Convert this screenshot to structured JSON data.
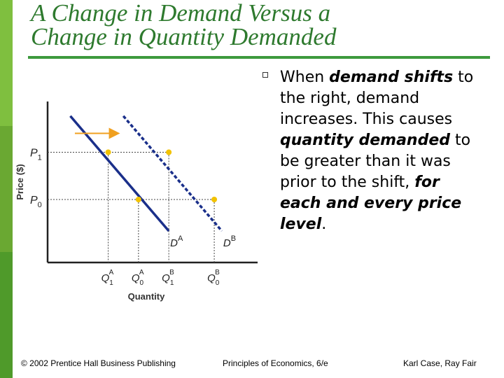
{
  "colors": {
    "title": "#2e7a2e",
    "rule": "#3d9a3d",
    "sidebar": [
      "#3d6b3d",
      "#7fbf3f",
      "#6aa832",
      "#4f9a2a"
    ],
    "curve": "#1a2f8a",
    "point": "#f2c200",
    "arrow": "#f0a020"
  },
  "slide": {
    "title_line1": "A Change in Demand Versus a",
    "title_line2": "Change in Quantity Demanded"
  },
  "bullet": {
    "icon": "square-bullet-icon",
    "parts": [
      {
        "text": "When ",
        "emph": false
      },
      {
        "text": "demand shifts",
        "emph": true
      },
      {
        "text": " to the right, demand increases. This causes ",
        "emph": false
      },
      {
        "text": "quantity demanded",
        "emph": true
      },
      {
        "text": " to be greater than it was prior to the shift, ",
        "emph": false
      },
      {
        "text": "for each and every price level",
        "emph": true
      },
      {
        "text": ".",
        "emph": false
      }
    ]
  },
  "chart_data": {
    "type": "line",
    "title": "",
    "xlabel": "Quantity",
    "ylabel": "Price ($)",
    "y_ticks": [
      {
        "main": "P",
        "sub": "1",
        "value": 7
      },
      {
        "main": "P",
        "sub": "0",
        "value": 4
      }
    ],
    "x_ticks": [
      {
        "main": "Q",
        "sub": "1",
        "sup": "A",
        "value": 4
      },
      {
        "main": "Q",
        "sub": "0",
        "sup": "A",
        "value": 6
      },
      {
        "main": "Q",
        "sub": "1",
        "sup": "B",
        "value": 8
      },
      {
        "main": "Q",
        "sub": "0",
        "sup": "B",
        "value": 11
      }
    ],
    "xlim": [
      0,
      14
    ],
    "ylim": [
      0,
      10
    ],
    "series": [
      {
        "name": "D",
        "sup": "A",
        "style": "solid",
        "points": [
          [
            1.5,
            9.3
          ],
          [
            8,
            2
          ]
        ]
      },
      {
        "name": "D",
        "sup": "B",
        "style": "dashed",
        "points": [
          [
            5,
            9.3
          ],
          [
            11.5,
            2
          ]
        ]
      }
    ],
    "points": [
      {
        "x": 4,
        "y": 7
      },
      {
        "x": 6,
        "y": 4
      },
      {
        "x": 8,
        "y": 7
      },
      {
        "x": 11,
        "y": 4
      }
    ],
    "shift_arrow": {
      "from": [
        1.8,
        8.2
      ],
      "to": [
        4.6,
        8.2
      ],
      "direction": "right"
    }
  },
  "footer": {
    "left": "© 2002 Prentice Hall Business Publishing",
    "center": "Principles of Economics, 6/e",
    "right": "Karl Case, Ray Fair"
  }
}
